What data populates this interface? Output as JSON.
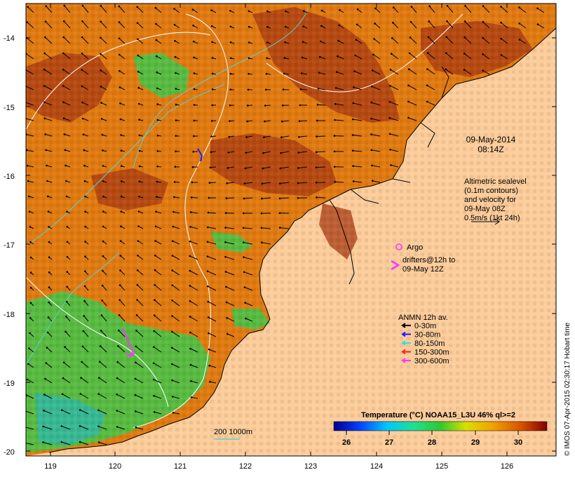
{
  "date": {
    "line1": "09-May-2014",
    "line2": "08:14Z"
  },
  "altimetry": {
    "lines": [
      "Altimetric sealevel",
      "(0.1m contours)",
      "and velocity for",
      "09-May 08Z",
      "0.5m/s (1kt 24h)"
    ]
  },
  "argo_label": "Argo",
  "drifters": {
    "line1": "drifters@12h to",
    "line2": "09-May 12Z"
  },
  "anmn": {
    "title": "ANMN 12h av.",
    "items": [
      {
        "label": "0-30m",
        "color": "#000000"
      },
      {
        "label": "30-80m",
        "color": "#1a1aff"
      },
      {
        "label": "80-150m",
        "color": "#33dddd"
      },
      {
        "label": "150-300m",
        "color": "#ff2020"
      },
      {
        "label": "300-600m",
        "color": "#ff33ff"
      }
    ]
  },
  "colorbar": {
    "title": "Temperature (°C) NOAA15_L3U 46% ql>=2",
    "ticks": [
      "26",
      "27",
      "28",
      "29",
      "30"
    ]
  },
  "isobath_label": "200  1000m",
  "credit": "© IMOS 07-Apr-2015 02:30:17 Hobart time",
  "axes": {
    "x_ticks": [
      "119",
      "120",
      "121",
      "122",
      "123",
      "124",
      "125",
      "126"
    ],
    "y_ticks": [
      "-14",
      "-15",
      "-16",
      "-17",
      "-18",
      "-19",
      "-20"
    ]
  },
  "colors": {
    "land": "#fccc9a",
    "sea_warm": "#e07a10",
    "sea_hot": "#a83a12",
    "sea_cool": "#3fc74a",
    "contour": "#ffffff",
    "isobath": "#5fd0c8",
    "drifter": "#ff33ff"
  }
}
